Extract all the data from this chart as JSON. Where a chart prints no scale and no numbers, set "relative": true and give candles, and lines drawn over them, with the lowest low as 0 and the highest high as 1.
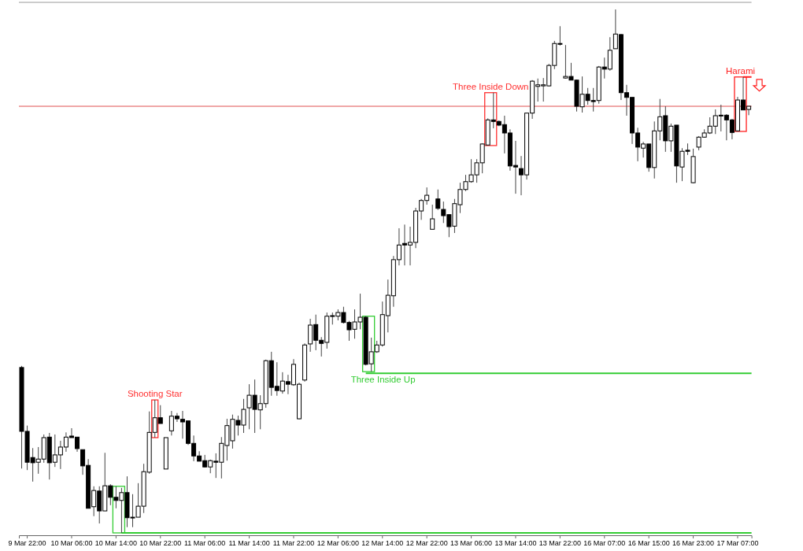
{
  "chart_data": {
    "type": "candlestick",
    "relative": true,
    "tick_labels": "x",
    "categories": [
      null,
      "9 Mar 22:00",
      null,
      null,
      null,
      null,
      null,
      null,
      null,
      "10 Mar 06:00",
      null,
      null,
      null,
      null,
      null,
      null,
      null,
      "10 Mar 14:00",
      null,
      null,
      null,
      null,
      null,
      null,
      null,
      "10 Mar 22:00",
      null,
      null,
      null,
      null,
      null,
      null,
      null,
      "11 Mar 06:00",
      null,
      null,
      null,
      null,
      null,
      null,
      null,
      "11 Mar 14:00",
      null,
      null,
      null,
      null,
      null,
      null,
      null,
      "11 Mar 22:00",
      null,
      null,
      null,
      null,
      null,
      null,
      null,
      "12 Mar 06:00",
      null,
      null,
      null,
      null,
      null,
      null,
      null,
      "12 Mar 14:00",
      null,
      null,
      null,
      null,
      null,
      null,
      null,
      "12 Mar 22:00",
      null,
      null,
      null,
      null,
      null,
      null,
      null,
      "13 Mar 06:00",
      null,
      null,
      null,
      null,
      null,
      null,
      null,
      "13 Mar 14:00",
      null,
      null,
      null,
      null,
      null,
      null,
      null,
      "13 Mar 22:00",
      null,
      null,
      null,
      null,
      null,
      null,
      null,
      "16 Mar 07:00",
      null,
      null,
      null,
      null,
      null,
      null,
      null,
      "16 Mar 15:00",
      null,
      null,
      null,
      null,
      null,
      null,
      null,
      "16 Mar 23:00",
      null,
      null,
      null,
      null,
      null,
      null,
      null,
      "17 Mar 07:00",
      null,
      null
    ],
    "ohlc": [
      [
        0.316,
        0.319,
        0.123,
        0.194
      ],
      [
        0.194,
        0.205,
        0.12,
        0.135
      ],
      [
        0.144,
        0.162,
        0.098,
        0.134
      ],
      [
        0.135,
        0.164,
        0.113,
        0.141
      ],
      [
        0.141,
        0.188,
        0.134,
        0.182
      ],
      [
        0.183,
        0.191,
        0.102,
        0.134
      ],
      [
        0.135,
        0.188,
        0.126,
        0.149
      ],
      [
        0.149,
        0.176,
        0.122,
        0.164
      ],
      [
        0.164,
        0.192,
        0.155,
        0.183
      ],
      [
        0.185,
        0.2,
        0.182,
        0.182
      ],
      [
        0.183,
        0.183,
        0.155,
        0.161
      ],
      [
        0.159,
        0.159,
        0.111,
        0.128
      ],
      [
        0.129,
        0.141,
        0.047,
        0.047
      ],
      [
        0.05,
        0.089,
        0.032,
        0.081
      ],
      [
        0.08,
        0.089,
        0.018,
        0.042
      ],
      [
        0.042,
        0.153,
        0.042,
        0.09
      ],
      [
        0.09,
        0.093,
        0.053,
        0.068
      ],
      [
        0.068,
        0.089,
        0.047,
        0.062
      ],
      [
        0.062,
        0.086,
        0.0,
        0.077
      ],
      [
        0.077,
        0.108,
        0.011,
        0.029
      ],
      [
        0.03,
        0.074,
        0.011,
        0.029
      ],
      [
        0.03,
        0.095,
        0.03,
        0.051
      ],
      [
        0.051,
        0.132,
        0.038,
        0.117
      ],
      [
        0.116,
        0.232,
        0.113,
        0.192
      ],
      [
        0.192,
        0.254,
        0.182,
        0.22
      ],
      [
        0.22,
        0.244,
        0.209,
        0.209
      ],
      [
        0.122,
        0.182,
        0.122,
        0.182
      ],
      [
        0.195,
        0.233,
        0.186,
        0.223
      ],
      [
        0.223,
        0.229,
        0.212,
        0.218
      ],
      [
        0.217,
        0.233,
        0.18,
        0.212
      ],
      [
        0.214,
        0.214,
        0.168,
        0.171
      ],
      [
        0.171,
        0.186,
        0.137,
        0.147
      ],
      [
        0.147,
        0.156,
        0.137,
        0.137
      ],
      [
        0.138,
        0.149,
        0.125,
        0.126
      ],
      [
        0.126,
        0.14,
        0.114,
        0.138
      ],
      [
        0.137,
        0.152,
        0.105,
        0.135
      ],
      [
        0.135,
        0.183,
        0.104,
        0.171
      ],
      [
        0.167,
        0.218,
        0.138,
        0.205
      ],
      [
        0.176,
        0.226,
        0.161,
        0.217
      ],
      [
        0.215,
        0.224,
        0.186,
        0.206
      ],
      [
        0.206,
        0.256,
        0.191,
        0.236
      ],
      [
        0.239,
        0.284,
        0.198,
        0.263
      ],
      [
        0.263,
        0.293,
        0.191,
        0.236
      ],
      [
        0.235,
        0.263,
        0.198,
        0.247
      ],
      [
        0.247,
        0.331,
        0.239,
        0.329
      ],
      [
        0.329,
        0.346,
        0.262,
        0.278
      ],
      [
        0.28,
        0.326,
        0.262,
        0.272
      ],
      [
        0.271,
        0.307,
        0.266,
        0.29
      ],
      [
        0.289,
        0.302,
        0.265,
        0.284
      ],
      [
        0.283,
        0.332,
        0.281,
        0.322
      ],
      [
        0.218,
        0.287,
        0.217,
        0.284
      ],
      [
        0.292,
        0.362,
        0.289,
        0.359
      ],
      [
        0.361,
        0.409,
        0.346,
        0.397
      ],
      [
        0.398,
        0.417,
        0.349,
        0.368
      ],
      [
        0.368,
        0.374,
        0.337,
        0.362
      ],
      [
        0.364,
        0.421,
        0.352,
        0.414
      ],
      [
        0.415,
        0.421,
        0.398,
        0.414
      ],
      [
        0.414,
        0.427,
        0.406,
        0.421
      ],
      [
        0.421,
        0.432,
        0.4,
        0.402
      ],
      [
        0.402,
        0.405,
        0.367,
        0.388
      ],
      [
        0.389,
        0.427,
        0.371,
        0.403
      ],
      [
        0.403,
        0.457,
        0.389,
        0.412
      ],
      [
        0.412,
        0.414,
        0.32,
        0.322
      ],
      [
        0.323,
        0.373,
        0.308,
        0.346
      ],
      [
        0.346,
        0.367,
        0.344,
        0.359
      ],
      [
        0.359,
        0.442,
        0.356,
        0.417
      ],
      [
        0.415,
        0.484,
        0.383,
        0.454
      ],
      [
        0.453,
        0.529,
        0.432,
        0.522
      ],
      [
        0.522,
        0.582,
        0.511,
        0.55
      ],
      [
        0.553,
        0.589,
        0.511,
        0.55
      ],
      [
        0.55,
        0.585,
        0.511,
        0.555
      ],
      [
        0.555,
        0.621,
        0.544,
        0.615
      ],
      [
        0.615,
        0.638,
        0.598,
        0.635
      ],
      [
        0.635,
        0.66,
        0.627,
        0.645
      ],
      [
        0.58,
        0.627,
        0.58,
        0.6
      ],
      [
        0.638,
        0.656,
        0.617,
        0.62
      ],
      [
        0.618,
        0.633,
        0.592,
        0.606
      ],
      [
        0.608,
        0.609,
        0.565,
        0.585
      ],
      [
        0.586,
        0.638,
        0.573,
        0.629
      ],
      [
        0.627,
        0.669,
        0.611,
        0.656
      ],
      [
        0.656,
        0.684,
        0.653,
        0.671
      ],
      [
        0.671,
        0.714,
        0.669,
        0.684
      ],
      [
        0.684,
        0.714,
        0.669,
        0.707
      ],
      [
        0.707,
        0.744,
        0.687,
        0.743
      ],
      [
        0.741,
        0.792,
        0.74,
        0.789
      ],
      [
        0.789,
        0.841,
        0.773,
        0.786
      ],
      [
        0.786,
        0.788,
        0.777,
        0.779
      ],
      [
        0.78,
        0.797,
        0.725,
        0.764
      ],
      [
        0.764,
        0.771,
        0.692,
        0.701
      ],
      [
        0.702,
        0.749,
        0.648,
        0.699
      ],
      [
        0.696,
        0.72,
        0.645,
        0.684
      ],
      [
        0.684,
        0.802,
        0.675,
        0.802
      ],
      [
        0.802,
        0.865,
        0.791,
        0.863
      ],
      [
        0.853,
        0.868,
        0.824,
        0.856
      ],
      [
        0.854,
        0.869,
        0.824,
        0.856
      ],
      [
        0.854,
        0.896,
        0.853,
        0.893
      ],
      [
        0.893,
        0.94,
        0.886,
        0.935
      ],
      [
        0.935,
        0.968,
        0.931,
        0.934
      ],
      [
        0.869,
        0.932,
        0.868,
        0.872
      ],
      [
        0.872,
        0.898,
        0.865,
        0.865
      ],
      [
        0.865,
        0.866,
        0.805,
        0.815
      ],
      [
        0.814,
        0.872,
        0.803,
        0.838
      ],
      [
        0.838,
        0.85,
        0.818,
        0.826
      ],
      [
        0.826,
        0.85,
        0.805,
        0.824
      ],
      [
        0.826,
        0.892,
        0.82,
        0.89
      ],
      [
        0.89,
        0.908,
        0.868,
        0.886
      ],
      [
        0.886,
        0.947,
        0.883,
        0.922
      ],
      [
        0.925,
        1.0,
        0.925,
        0.953
      ],
      [
        0.952,
        0.953,
        0.827,
        0.841
      ],
      [
        0.841,
        0.856,
        0.797,
        0.832
      ],
      [
        0.832,
        0.832,
        0.743,
        0.764
      ],
      [
        0.764,
        0.774,
        0.71,
        0.737
      ],
      [
        0.735,
        0.747,
        0.717,
        0.743
      ],
      [
        0.743,
        0.743,
        0.69,
        0.698
      ],
      [
        0.698,
        0.786,
        0.677,
        0.768
      ],
      [
        0.768,
        0.829,
        0.75,
        0.795
      ],
      [
        0.797,
        0.815,
        0.728,
        0.749
      ],
      [
        0.749,
        0.782,
        0.728,
        0.777
      ],
      [
        0.779,
        0.779,
        0.669,
        0.701
      ],
      [
        0.699,
        0.735,
        0.672,
        0.729
      ],
      [
        0.731,
        0.744,
        0.722,
        0.729
      ],
      [
        0.669,
        0.734,
        0.668,
        0.719
      ],
      [
        0.737,
        0.758,
        0.731,
        0.756
      ],
      [
        0.756,
        0.771,
        0.755,
        0.764
      ],
      [
        0.764,
        0.794,
        0.762,
        0.777
      ],
      [
        0.777,
        0.809,
        0.762,
        0.797
      ],
      [
        0.798,
        0.818,
        0.767,
        0.797
      ],
      [
        0.798,
        0.8,
        0.75,
        0.789
      ],
      [
        0.789,
        0.791,
        0.752,
        0.765
      ],
      [
        0.768,
        0.833,
        0.767,
        0.827
      ],
      [
        0.827,
        0.871,
        0.808,
        0.808
      ],
      [
        0.809,
        0.815,
        0.798,
        0.815
      ]
    ],
    "ref_lines": [
      {
        "axis": "y",
        "value": 0.815,
        "color": "#e05050"
      },
      {
        "axis": "y",
        "value": 0.871,
        "label": "Harami",
        "color": "#ff2020"
      },
      {
        "axis": "y",
        "value": 0.305,
        "label": "Three Inside Up",
        "color": "#33cc33"
      },
      {
        "axis": "y",
        "value": 0,
        "color": "#33cc33"
      }
    ],
    "annotations": [
      "Shooting Star",
      "Three Inside Down"
    ]
  }
}
